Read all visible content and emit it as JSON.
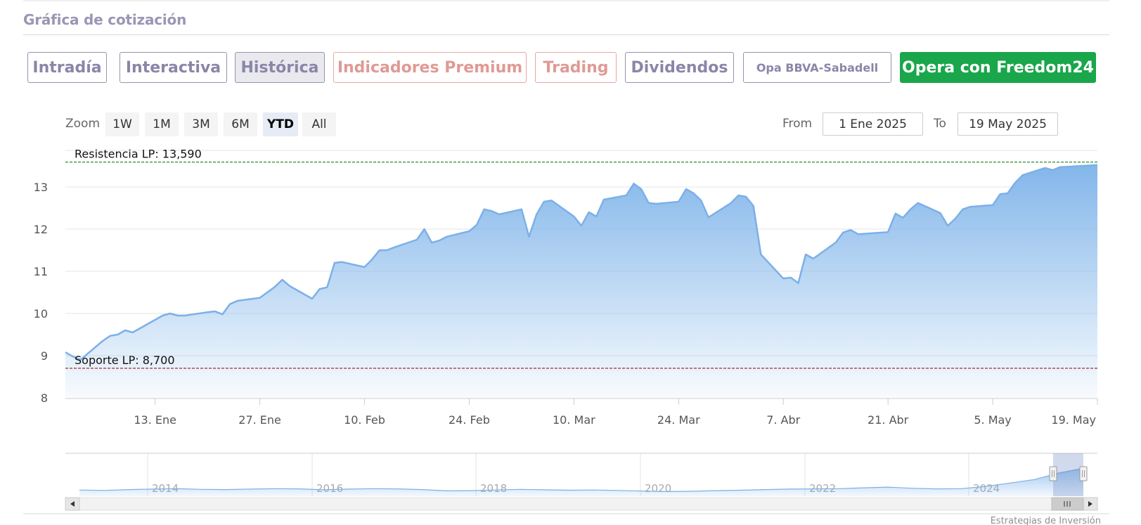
{
  "section": {
    "title": "Gráfica de cotización"
  },
  "tabs": [
    {
      "label": "Intradía",
      "style": "normal"
    },
    {
      "label": "Interactiva",
      "style": "normal"
    },
    {
      "label": "Histórica",
      "style": "active"
    },
    {
      "label": "Indicadores Premium",
      "style": "salmon"
    },
    {
      "label": "Trading",
      "style": "salmon"
    },
    {
      "label": "Dividendos",
      "style": "normal"
    },
    {
      "label": "Opa BBVA-Sabadell",
      "style": "small"
    },
    {
      "label": "Opera con Freedom24",
      "style": "green"
    }
  ],
  "zoom": {
    "label": "Zoom",
    "buttons": [
      "1W",
      "1M",
      "3M",
      "6M",
      "YTD",
      "All"
    ],
    "active": "YTD"
  },
  "range": {
    "from_label": "From",
    "from_value": "1 Ene 2025",
    "to_label": "To",
    "to_value": "19 May 2025"
  },
  "colors": {
    "line": "#7cb0e8",
    "fill_top": "#83b6ea",
    "resistance": "#2e8b2e",
    "support": "#a52a2a",
    "accent_green": "#1aa64b"
  },
  "chart_data": {
    "type": "area",
    "xlabel": "",
    "ylabel": "",
    "ylim": [
      8,
      14
    ],
    "y_ticks": [
      8,
      9,
      10,
      11,
      12,
      13
    ],
    "x_range": [
      "2025-01-01",
      "2025-05-19"
    ],
    "x_ticks": [
      {
        "date": "2025-01-13",
        "label": "13. Ene"
      },
      {
        "date": "2025-01-27",
        "label": "27. Ene"
      },
      {
        "date": "2025-02-10",
        "label": "10. Feb"
      },
      {
        "date": "2025-02-24",
        "label": "24. Feb"
      },
      {
        "date": "2025-03-10",
        "label": "10. Mar"
      },
      {
        "date": "2025-03-24",
        "label": "24. Mar"
      },
      {
        "date": "2025-04-07",
        "label": "7. Abr"
      },
      {
        "date": "2025-04-21",
        "label": "21. Abr"
      },
      {
        "date": "2025-05-05",
        "label": "5. May"
      },
      {
        "date": "2025-05-19",
        "label": "19. May"
      }
    ],
    "grid": true,
    "legend": "none",
    "reference_lines": [
      {
        "label": "Resistencia LP: 13,590",
        "value": 13.59,
        "color": "#2e8b2e"
      },
      {
        "label": "Soporte LP: 8,700",
        "value": 8.7,
        "color": "#a52a2a"
      }
    ],
    "series": [
      {
        "points": [
          [
            "2025-01-01",
            9.08
          ],
          [
            "2025-01-02",
            8.98
          ],
          [
            "2025-01-03",
            8.9
          ],
          [
            "2025-01-06",
            9.35
          ],
          [
            "2025-01-07",
            9.47
          ],
          [
            "2025-01-08",
            9.5
          ],
          [
            "2025-01-09",
            9.6
          ],
          [
            "2025-01-10",
            9.55
          ],
          [
            "2025-01-13",
            9.85
          ],
          [
            "2025-01-14",
            9.95
          ],
          [
            "2025-01-15",
            10.0
          ],
          [
            "2025-01-16",
            9.95
          ],
          [
            "2025-01-17",
            9.95
          ],
          [
            "2025-01-20",
            10.03
          ],
          [
            "2025-01-21",
            10.05
          ],
          [
            "2025-01-22",
            9.98
          ],
          [
            "2025-01-23",
            10.22
          ],
          [
            "2025-01-24",
            10.3
          ],
          [
            "2025-01-27",
            10.37
          ],
          [
            "2025-01-28",
            10.5
          ],
          [
            "2025-01-29",
            10.63
          ],
          [
            "2025-01-30",
            10.8
          ],
          [
            "2025-01-31",
            10.65
          ],
          [
            "2025-02-03",
            10.35
          ],
          [
            "2025-02-04",
            10.58
          ],
          [
            "2025-02-05",
            10.62
          ],
          [
            "2025-02-06",
            11.2
          ],
          [
            "2025-02-07",
            11.22
          ],
          [
            "2025-02-10",
            11.1
          ],
          [
            "2025-02-11",
            11.28
          ],
          [
            "2025-02-12",
            11.5
          ],
          [
            "2025-02-13",
            11.5
          ],
          [
            "2025-02-14",
            11.57
          ],
          [
            "2025-02-17",
            11.75
          ],
          [
            "2025-02-18",
            12.0
          ],
          [
            "2025-02-19",
            11.68
          ],
          [
            "2025-02-20",
            11.73
          ],
          [
            "2025-02-21",
            11.82
          ],
          [
            "2025-02-24",
            11.95
          ],
          [
            "2025-02-25",
            12.1
          ],
          [
            "2025-02-26",
            12.47
          ],
          [
            "2025-02-27",
            12.43
          ],
          [
            "2025-02-28",
            12.35
          ],
          [
            "2025-03-03",
            12.47
          ],
          [
            "2025-03-04",
            11.82
          ],
          [
            "2025-03-05",
            12.35
          ],
          [
            "2025-03-06",
            12.65
          ],
          [
            "2025-03-07",
            12.68
          ],
          [
            "2025-03-10",
            12.3
          ],
          [
            "2025-03-11",
            12.08
          ],
          [
            "2025-03-12",
            12.4
          ],
          [
            "2025-03-13",
            12.3
          ],
          [
            "2025-03-14",
            12.7
          ],
          [
            "2025-03-17",
            12.8
          ],
          [
            "2025-03-18",
            13.08
          ],
          [
            "2025-03-19",
            12.95
          ],
          [
            "2025-03-20",
            12.62
          ],
          [
            "2025-03-21",
            12.6
          ],
          [
            "2025-03-24",
            12.65
          ],
          [
            "2025-03-25",
            12.95
          ],
          [
            "2025-03-26",
            12.85
          ],
          [
            "2025-03-27",
            12.68
          ],
          [
            "2025-03-28",
            12.28
          ],
          [
            "2025-03-31",
            12.62
          ],
          [
            "2025-04-01",
            12.8
          ],
          [
            "2025-04-02",
            12.77
          ],
          [
            "2025-04-03",
            12.55
          ],
          [
            "2025-04-04",
            11.4
          ],
          [
            "2025-04-07",
            10.83
          ],
          [
            "2025-04-08",
            10.85
          ],
          [
            "2025-04-09",
            10.72
          ],
          [
            "2025-04-10",
            11.4
          ],
          [
            "2025-04-11",
            11.3
          ],
          [
            "2025-04-14",
            11.68
          ],
          [
            "2025-04-15",
            11.92
          ],
          [
            "2025-04-16",
            11.98
          ],
          [
            "2025-04-17",
            11.88
          ],
          [
            "2025-04-21",
            11.93
          ],
          [
            "2025-04-22",
            12.37
          ],
          [
            "2025-04-23",
            12.27
          ],
          [
            "2025-04-24",
            12.47
          ],
          [
            "2025-04-25",
            12.62
          ],
          [
            "2025-04-28",
            12.38
          ],
          [
            "2025-04-29",
            12.08
          ],
          [
            "2025-04-30",
            12.25
          ],
          [
            "2025-05-01",
            12.47
          ],
          [
            "2025-05-02",
            12.53
          ],
          [
            "2025-05-05",
            12.57
          ],
          [
            "2025-05-06",
            12.83
          ],
          [
            "2025-05-07",
            12.85
          ],
          [
            "2025-05-08",
            13.1
          ],
          [
            "2025-05-09",
            13.28
          ],
          [
            "2025-05-12",
            13.45
          ],
          [
            "2025-05-13",
            13.4
          ],
          [
            "2025-05-14",
            13.47
          ],
          [
            "2025-05-19",
            13.52
          ]
        ]
      }
    ]
  },
  "navigator": {
    "year_labels": [
      "2014",
      "2016",
      "2018",
      "2020",
      "2022",
      "2024"
    ],
    "series": [
      9.6,
      9.5,
      9.7,
      9.8,
      9.9,
      9.75,
      9.7,
      9.8,
      9.9,
      9.85,
      9.65,
      9.8,
      9.9,
      9.85,
      9.7,
      9.4,
      9.45,
      9.6,
      9.75,
      9.65,
      9.55,
      9.6,
      9.5,
      9.35,
      9.25,
      9.3,
      9.45,
      9.55,
      9.7,
      9.8,
      9.85,
      9.9,
      10.1,
      10.25,
      10.0,
      9.85,
      9.9,
      10.4,
      11.2,
      12.0,
      13.5,
      14.6
    ]
  },
  "credit": "Estrategias de Inversión"
}
